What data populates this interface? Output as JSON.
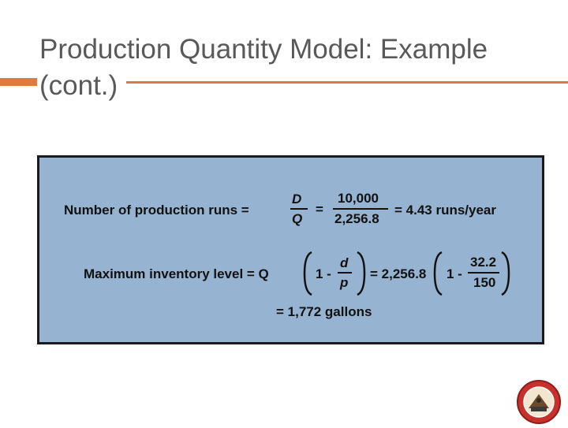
{
  "slide": {
    "title": "Production Quantity Model: Example (cont.)"
  },
  "formula1": {
    "label": "Number of production runs =",
    "numerator": "D",
    "denominator": "Q",
    "equals": "=",
    "value_numerator": "10,000",
    "value_denominator": "2,256.8",
    "result": "= 4.43 runs/year"
  },
  "formula2": {
    "label": "Maximum inventory level = Q",
    "one_minus": "1 -",
    "d": "d",
    "p": "p",
    "equals_value": "= 2,256.8",
    "one_minus_2": "1 -",
    "num": "32.2",
    "den": "150",
    "result": "= 1,772 gallons"
  },
  "colors": {
    "panel": "#96b3d1",
    "accent": "#e07a3f",
    "title": "#595959"
  }
}
